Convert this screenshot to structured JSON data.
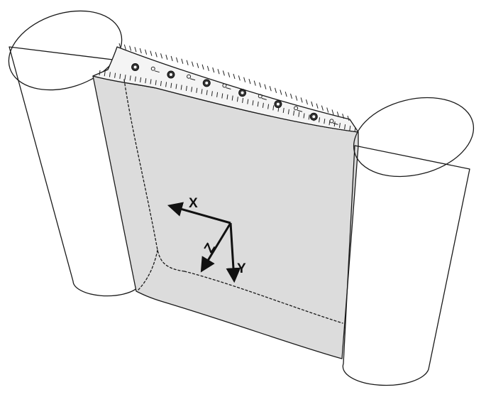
{
  "figure": {
    "colors": {
      "background": "#ffffff",
      "sheet_fill": "#dcdcdc",
      "strip_fill": "#f4f4f4",
      "ink": "#1a1a1a"
    },
    "axes": {
      "x_label": "X",
      "y_label": "Y",
      "z_label": "Z"
    }
  }
}
